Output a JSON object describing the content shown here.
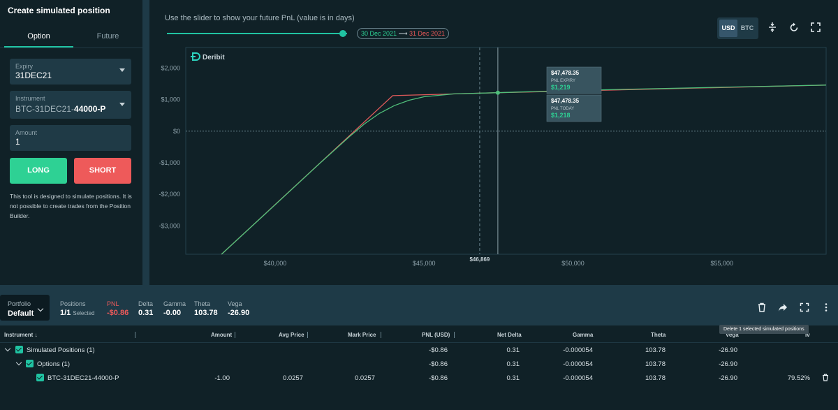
{
  "left_panel": {
    "title": "Create simulated position",
    "tabs": [
      "Option",
      "Future"
    ],
    "expiry": {
      "label": "Expiry",
      "value": "31DEC21"
    },
    "instrument": {
      "label": "Instrument",
      "prefix": "BTC-31DEC21-",
      "strike": "44000-P"
    },
    "amount": {
      "label": "Amount",
      "value": "1"
    },
    "long_label": "LONG",
    "short_label": "SHORT",
    "note": "This tool is designed to simulate positions. It is not possible to create trades from the Position Builder."
  },
  "slider": {
    "hint": "Use the slider to show your future PnL (value is in days)",
    "from_date": "30 Dec 2021",
    "arrow": "⟶",
    "to_date": "31 Dec 2021",
    "position": 1.0
  },
  "currency": {
    "options": [
      "USD",
      "BTC"
    ],
    "selected": "USD"
  },
  "toolbar_icons": [
    "compress-icon",
    "reset-icon",
    "fullscreen-icon"
  ],
  "chart_data": {
    "type": "line",
    "brand": "Deribit",
    "xlim": [
      37000,
      58500
    ],
    "ylim": [
      -3900,
      2650
    ],
    "x_ticks": [
      40000,
      45000,
      50000,
      55000
    ],
    "x_tick_labels": [
      "$40,000",
      "$45,000",
      "$50,000",
      "$55,000"
    ],
    "y_ticks": [
      2000,
      1000,
      0,
      -1000,
      -2000,
      -3000
    ],
    "y_tick_labels": [
      "$2,000",
      "$1,000",
      "$0",
      "-$1,000",
      "-$2,000",
      "-$3,000"
    ],
    "current_price": {
      "x": 46869,
      "label": "$46,869"
    },
    "cursor_x": 47478.35,
    "series": [
      {
        "color": "#e05a5a",
        "x": [
          38200,
          43950,
          47478,
          58500
        ],
        "y": [
          -3900,
          1125,
          1219,
          1460
        ]
      },
      {
        "color": "#4fbf7a",
        "x": [
          38200,
          40000,
          41500,
          42500,
          43000,
          43500,
          44000,
          44500,
          45000,
          46000,
          47478,
          50000,
          55000,
          58500
        ],
        "y": [
          -3900,
          -2330,
          -1020,
          -170,
          230,
          560,
          810,
          980,
          1090,
          1180,
          1218,
          1290,
          1390,
          1460
        ]
      }
    ],
    "tooltips": [
      {
        "price": "$47,478.35",
        "label": "PNL EXPIRY",
        "value": "$1,219"
      },
      {
        "price": "$47,478.35",
        "label": "PNL TODAY",
        "value": "$1,218"
      }
    ]
  },
  "portfolio": {
    "label": "Portfolio",
    "value": "Default"
  },
  "stats": {
    "positions": {
      "label": "Positions",
      "value": "1/1",
      "suffix": "Selected"
    },
    "pnl": {
      "label": "PNL",
      "value": "-$0.86"
    },
    "delta": {
      "label": "Delta",
      "value": "0.31"
    },
    "gamma": {
      "label": "Gamma",
      "value": "-0.00"
    },
    "theta": {
      "label": "Theta",
      "value": "103.78"
    },
    "vega": {
      "label": "Vega",
      "value": "-26.90"
    }
  },
  "bottom_icons": [
    "trash-icon",
    "share-icon",
    "fullscreen-icon",
    "more-icon"
  ],
  "tooltip": "Delete 1 selected simulated positions",
  "table": {
    "columns": [
      "Instrument",
      "Amount",
      "Avg Price",
      "Mark Price",
      "PNL (USD)",
      "Net Delta",
      "Gamma",
      "Theta",
      "Vega",
      "Iv"
    ],
    "sort_arrow": "↓",
    "rows": [
      {
        "name": "Simulated Positions (1)",
        "amount": "",
        "avg": "",
        "mark": "",
        "pnl": "-$0.86",
        "delta": "0.31",
        "gamma": "-0.000054",
        "theta": "103.78",
        "vega": "-26.90",
        "iv": ""
      },
      {
        "name": "Options (1)",
        "amount": "",
        "avg": "",
        "mark": "",
        "pnl": "-$0.86",
        "delta": "0.31",
        "gamma": "-0.000054",
        "theta": "103.78",
        "vega": "-26.90",
        "iv": ""
      },
      {
        "name": "BTC-31DEC21-44000-P",
        "amount": "-1.00",
        "avg": "0.0257",
        "mark": "0.0257",
        "pnl": "-$0.86",
        "delta": "0.31",
        "gamma": "-0.000054",
        "theta": "103.78",
        "vega": "-26.90",
        "iv": "79.52%"
      }
    ]
  }
}
